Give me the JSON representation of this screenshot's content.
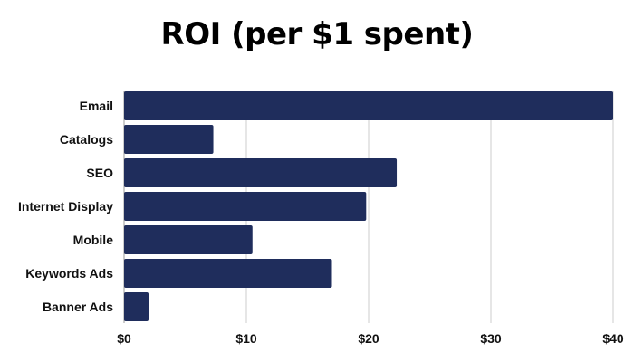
{
  "chart_data": {
    "type": "bar",
    "orientation": "horizontal",
    "title": "ROI (per $1 spent)",
    "xlabel": "",
    "ylabel": "",
    "categories": [
      "Email",
      "Catalogs",
      "SEO",
      "Internet Display",
      "Mobile",
      "Keywords Ads",
      "Banner Ads"
    ],
    "values": [
      40,
      7.3,
      22.3,
      19.8,
      10.5,
      17.0,
      2.0
    ],
    "xlim": [
      0,
      40
    ],
    "xticks": [
      0,
      10,
      20,
      30,
      40
    ],
    "xtick_labels": [
      "$0",
      "$10",
      "$20",
      "$30",
      "$40"
    ],
    "grid": "vertical",
    "legend": "none",
    "colors": {
      "bar": "#1f2d5c",
      "grid": "#cccccc"
    }
  }
}
